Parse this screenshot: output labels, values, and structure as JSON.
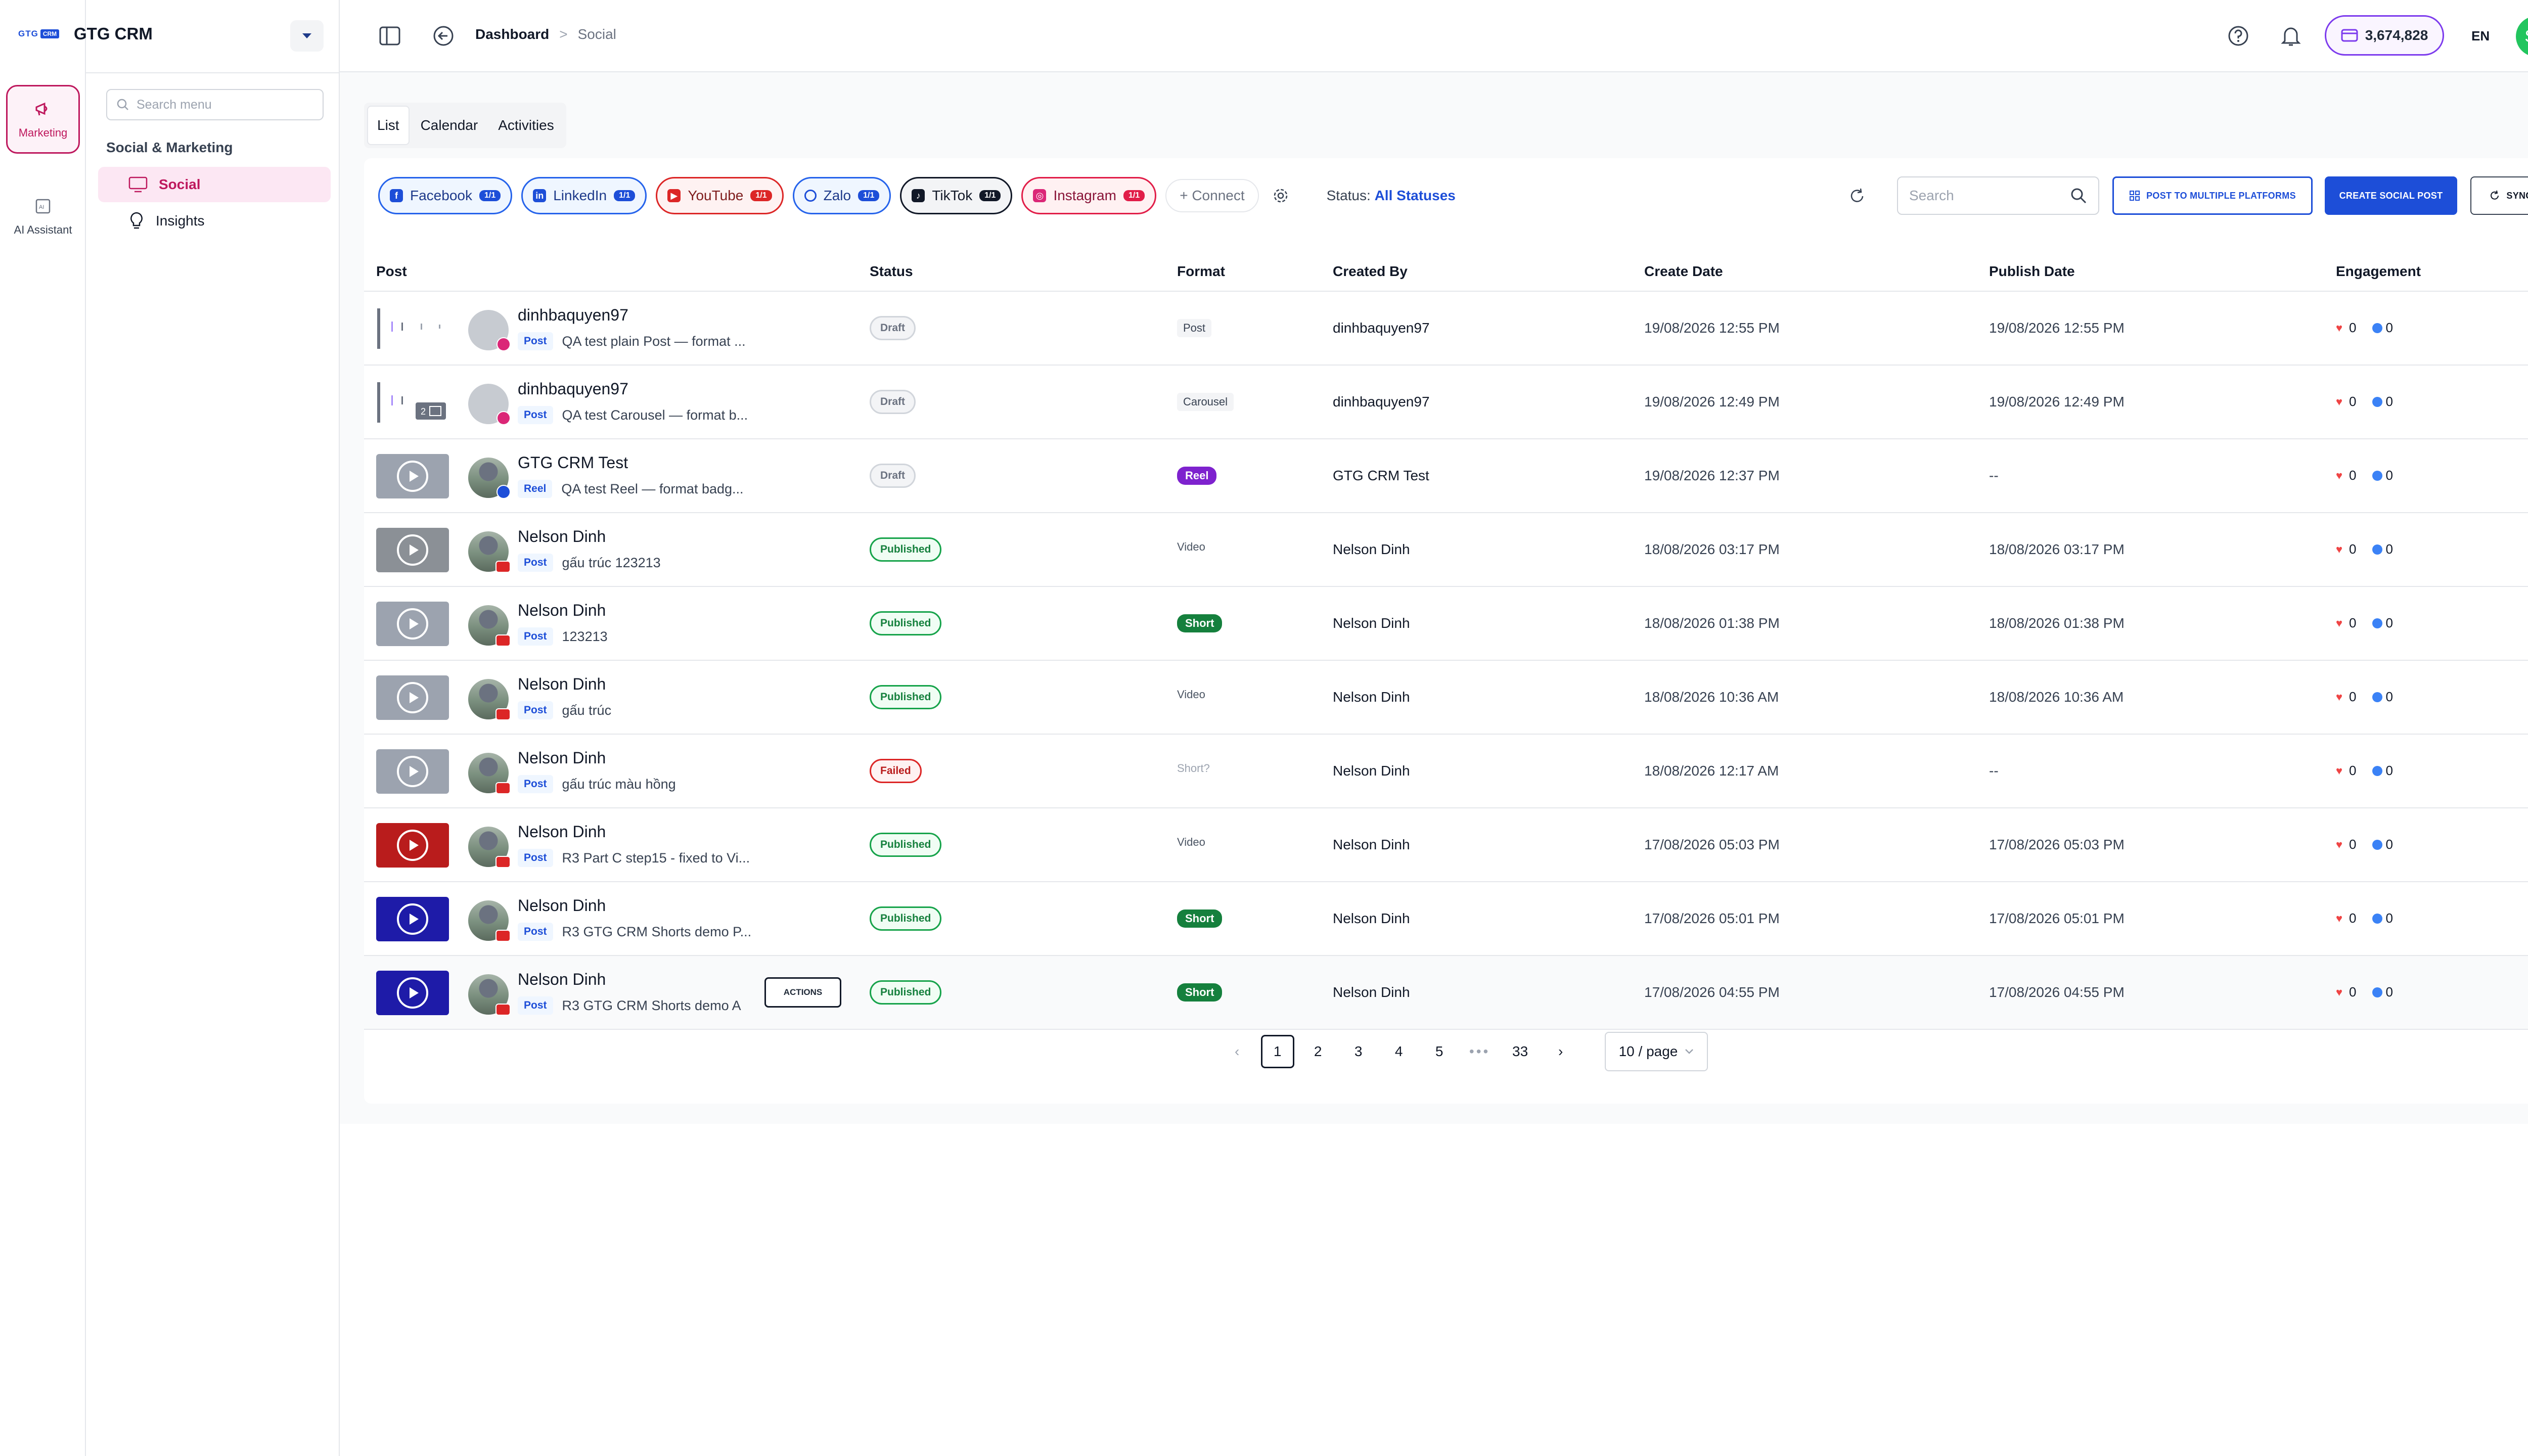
{
  "app": {
    "brand_logo_1": "GTG",
    "brand_logo_2": "CRM",
    "name": "GTG CRM"
  },
  "rail": {
    "marketing_label": "Marketing",
    "ai_label": "AI Assistant"
  },
  "menu": {
    "search_placeholder": "Search menu",
    "section": "Social & Marketing",
    "items": [
      {
        "label": "Social",
        "icon": "monitor-icon"
      },
      {
        "label": "Insights",
        "icon": "lightbulb-icon"
      }
    ]
  },
  "header": {
    "breadcrumb": {
      "root": "Dashboard",
      "separator": ">",
      "current": "Social"
    },
    "credits": "3,674,828",
    "language": "EN",
    "avatar_initials": "SP"
  },
  "tabs": [
    "List",
    "Calendar",
    "Activities"
  ],
  "platforms": [
    {
      "name": "Facebook",
      "count": "1/1"
    },
    {
      "name": "LinkedIn",
      "count": "1/1"
    },
    {
      "name": "YouTube",
      "count": "1/1"
    },
    {
      "name": "Zalo",
      "count": "1/1"
    },
    {
      "name": "TikTok",
      "count": "1/1"
    },
    {
      "name": "Instagram",
      "count": "1/1"
    }
  ],
  "toolbar": {
    "connect": "+ Connect",
    "status_label": "Status:",
    "status_value": "All Statuses",
    "search_placeholder": "Search",
    "post_multi": "POST TO MULTIPLE PLATFORMS",
    "create": "CREATE SOCIAL POST",
    "sync": "SYNC"
  },
  "columns": {
    "post": "Post",
    "status": "Status",
    "format": "Format",
    "created_by": "Created By",
    "create_date": "Create Date",
    "publish_date": "Publish Date",
    "engagement": "Engagement"
  },
  "rows": [
    {
      "name": "dinhbaquyen97",
      "kind": "Post",
      "text": "QA test plain Post — format ...",
      "status": "Draft",
      "format": "Post",
      "created_by": "dinhbaquyen97",
      "create_date": "19/08/2026 12:55 PM",
      "publish_date": "19/08/2026 12:55 PM",
      "likes": "0",
      "comments": "0"
    },
    {
      "name": "dinhbaquyen97",
      "kind": "Post",
      "text": "QA test Carousel — format b...",
      "status": "Draft",
      "format": "Carousel",
      "created_by": "dinhbaquyen97",
      "create_date": "19/08/2026 12:49 PM",
      "publish_date": "19/08/2026 12:49 PM",
      "likes": "0",
      "comments": "0"
    },
    {
      "name": "GTG CRM Test",
      "kind": "Reel",
      "text": "QA test Reel — format badg...",
      "status": "Draft",
      "format": "Reel",
      "created_by": "GTG CRM Test",
      "create_date": "19/08/2026 12:37 PM",
      "publish_date": "--",
      "likes": "0",
      "comments": "0"
    },
    {
      "name": "Nelson Dinh",
      "kind": "Post",
      "text": "gấu trúc 123213",
      "status": "Published",
      "format": "Video",
      "created_by": "Nelson Dinh",
      "create_date": "18/08/2026 03:17 PM",
      "publish_date": "18/08/2026 03:17 PM",
      "likes": "0",
      "comments": "0"
    },
    {
      "name": "Nelson Dinh",
      "kind": "Post",
      "text": "123213",
      "status": "Published",
      "format": "Short",
      "created_by": "Nelson Dinh",
      "create_date": "18/08/2026 01:38 PM",
      "publish_date": "18/08/2026 01:38 PM",
      "likes": "0",
      "comments": "0"
    },
    {
      "name": "Nelson Dinh",
      "kind": "Post",
      "text": "gấu trúc",
      "status": "Published",
      "format": "Video",
      "created_by": "Nelson Dinh",
      "create_date": "18/08/2026 10:36 AM",
      "publish_date": "18/08/2026 10:36 AM",
      "likes": "0",
      "comments": "0"
    },
    {
      "name": "Nelson Dinh",
      "kind": "Post",
      "text": "gấu trúc màu hồng",
      "status": "Failed",
      "format": "Short?",
      "created_by": "Nelson Dinh",
      "create_date": "18/08/2026 12:17 AM",
      "publish_date": "--",
      "likes": "0",
      "comments": "0"
    },
    {
      "name": "Nelson Dinh",
      "kind": "Post",
      "text": "R3 Part C step15 - fixed to Vi...",
      "status": "Published",
      "format": "Video",
      "created_by": "Nelson Dinh",
      "create_date": "17/08/2026 05:03 PM",
      "publish_date": "17/08/2026 05:03 PM",
      "likes": "0",
      "comments": "0"
    },
    {
      "name": "Nelson Dinh",
      "kind": "Post",
      "text": "R3 GTG CRM Shorts demo P...",
      "status": "Published",
      "format": "Short",
      "created_by": "Nelson Dinh",
      "create_date": "17/08/2026 05:01 PM",
      "publish_date": "17/08/2026 05:01 PM",
      "likes": "0",
      "comments": "0"
    },
    {
      "name": "Nelson Dinh",
      "kind": "Post",
      "text": "R3 GTG CRM Shorts demo A",
      "status": "Published",
      "format": "Short",
      "created_by": "Nelson Dinh",
      "create_date": "17/08/2026 04:55 PM",
      "publish_date": "17/08/2026 04:55 PM",
      "likes": "0",
      "comments": "0",
      "actions": "ACTIONS"
    }
  ],
  "pagination": {
    "prev": "‹",
    "pages": [
      "1",
      "2",
      "3",
      "4",
      "5"
    ],
    "dots": "•••",
    "last": "33",
    "next": "›",
    "per_page": "10 / page"
  },
  "colors": {
    "accent": "#1d4ed8",
    "brand_pink": "#be185d",
    "published": "#15803d",
    "failed": "#dc2626"
  }
}
